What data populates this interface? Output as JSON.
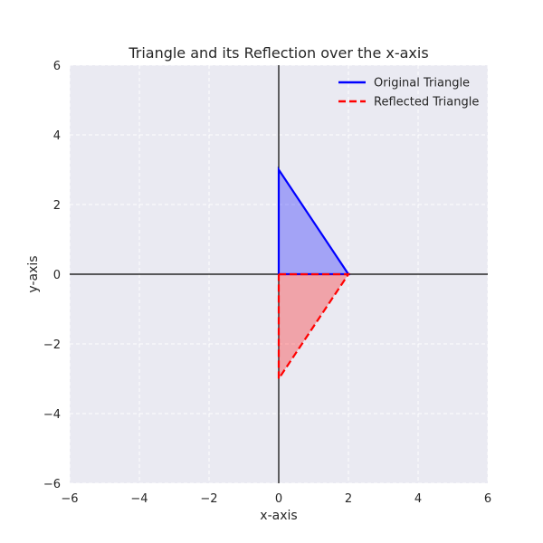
{
  "chart_data": {
    "type": "line",
    "title": "Triangle and its Reflection over the x-axis",
    "xlabel": "x-axis",
    "ylabel": "y-axis",
    "xlim": [
      -6,
      6
    ],
    "ylim": [
      -6,
      6
    ],
    "xticks": [
      -6,
      -4,
      -2,
      0,
      2,
      4,
      6
    ],
    "yticks": [
      -6,
      -4,
      -2,
      0,
      2,
      4,
      6
    ],
    "grid": true,
    "legend_position": "top-right",
    "series": [
      {
        "name": "Original Triangle",
        "x": [
          0,
          2,
          0,
          0
        ],
        "y": [
          0,
          0,
          3,
          0
        ],
        "color": "#0000ff",
        "fill_color": "#0000ff",
        "line_style": "solid",
        "filled": true
      },
      {
        "name": "Reflected Triangle",
        "x": [
          0,
          2,
          0,
          0
        ],
        "y": [
          0,
          0,
          -3,
          0
        ],
        "color": "#ff0000",
        "fill_color": "#ff0000",
        "line_style": "dashed",
        "filled": true
      }
    ],
    "plot_background": "#eaeaf2",
    "grid_color": "#ffffff",
    "axis_line_color": "#000000"
  }
}
